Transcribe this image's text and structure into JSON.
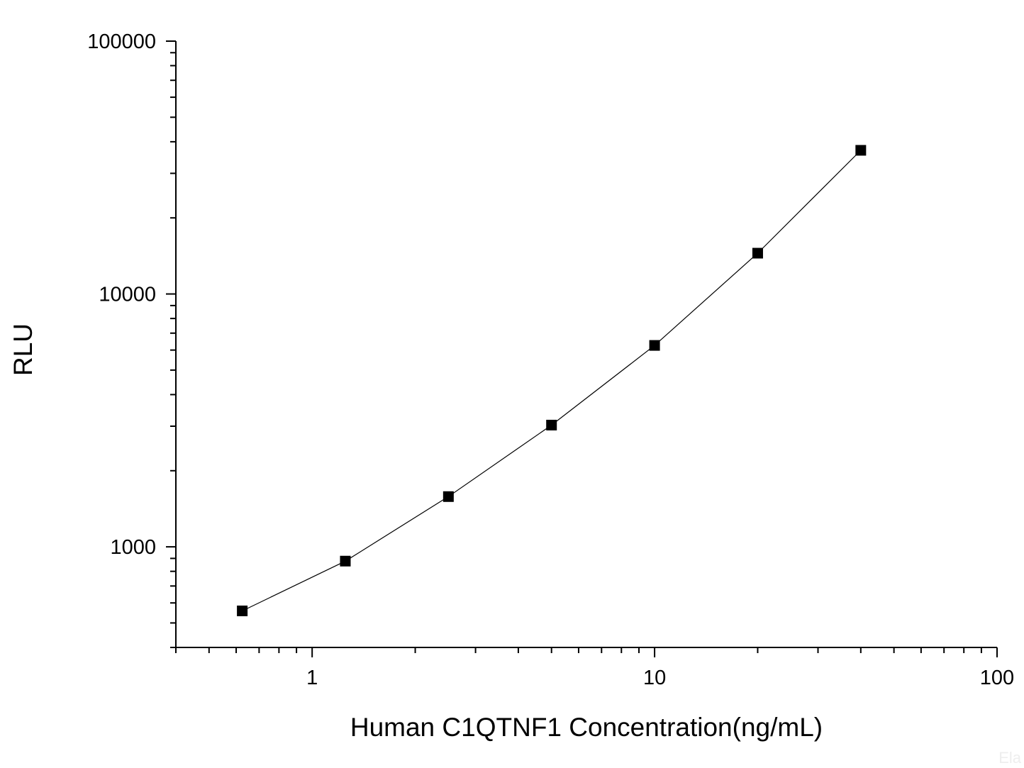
{
  "chart_data": {
    "type": "line",
    "title": "",
    "xlabel": "Human C1QTNF1 Concentration(ng/mL)",
    "ylabel": "RLU",
    "x_scale": "log",
    "y_scale": "log",
    "xlim": [
      0.4,
      100
    ],
    "ylim": [
      400,
      100000
    ],
    "x_ticks": [
      "1",
      "10",
      "100"
    ],
    "y_ticks": [
      "1000",
      "10000",
      "100000"
    ],
    "grid": false,
    "legend": "none",
    "series": [
      {
        "x": [
          0.625,
          1.25,
          2.5,
          5,
          10,
          20,
          40
        ],
        "y": [
          558,
          878,
          1580,
          3030,
          6260,
          14500,
          37000
        ],
        "marker": "square",
        "color": "#000000"
      }
    ]
  },
  "watermark": "Ela"
}
